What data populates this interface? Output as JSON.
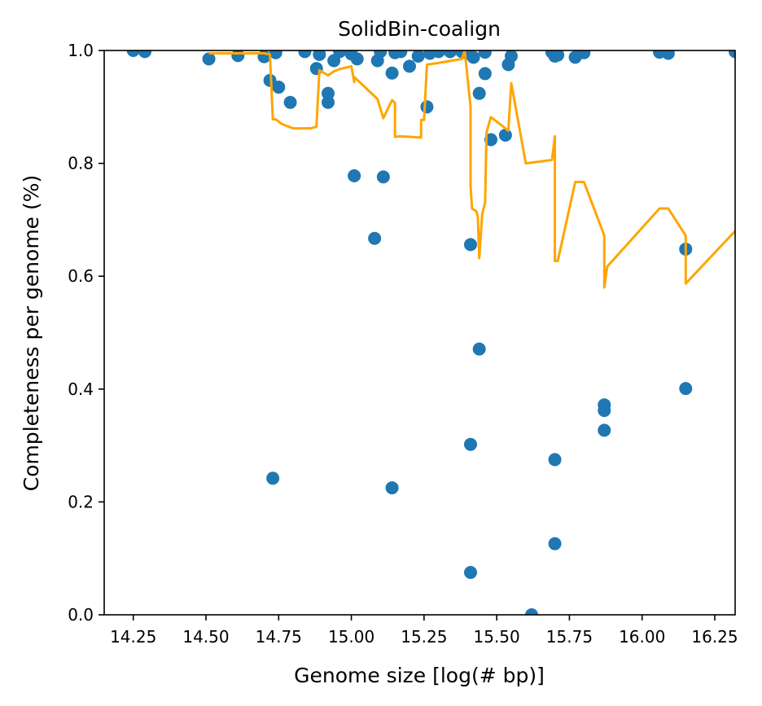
{
  "chart_data": {
    "type": "scatter",
    "title": "SolidBin-coalign",
    "xlabel": "Genome size [log(# bp)]",
    "ylabel": "Completeness per genome (%)",
    "xlim": [
      14.15,
      16.32
    ],
    "ylim": [
      0.0,
      1.0
    ],
    "x_ticks": [
      14.25,
      14.5,
      14.75,
      15.0,
      15.25,
      15.5,
      15.75,
      16.0,
      16.25
    ],
    "x_tick_labels": [
      "14.25",
      "14.50",
      "14.75",
      "15.00",
      "15.25",
      "15.50",
      "15.75",
      "16.00",
      "16.25"
    ],
    "y_ticks": [
      0.0,
      0.2,
      0.4,
      0.6,
      0.8,
      1.0
    ],
    "y_tick_labels": [
      "0.0",
      "0.2",
      "0.4",
      "0.6",
      "0.8",
      "1.0"
    ],
    "grid": false,
    "colors": {
      "points": "#1f77b4",
      "line": "#ffa500",
      "axes": "#000000"
    },
    "series": [
      {
        "type": "scatter",
        "points": [
          [
            14.25,
            1.0
          ],
          [
            14.29,
            0.998
          ],
          [
            14.51,
            0.985
          ],
          [
            14.61,
            0.991
          ],
          [
            14.7,
            0.989
          ],
          [
            14.72,
            0.947
          ],
          [
            14.73,
            0.242
          ],
          [
            14.74,
            0.996
          ],
          [
            14.75,
            0.935
          ],
          [
            14.79,
            0.908
          ],
          [
            14.84,
            0.998
          ],
          [
            14.88,
            0.968
          ],
          [
            14.89,
            0.993
          ],
          [
            14.92,
            0.924
          ],
          [
            14.92,
            0.908
          ],
          [
            14.94,
            0.982
          ],
          [
            14.96,
            0.998
          ],
          [
            15.0,
            0.994
          ],
          [
            15.01,
            0.778
          ],
          [
            15.02,
            0.985
          ],
          [
            15.08,
            0.667
          ],
          [
            15.09,
            0.982
          ],
          [
            15.1,
            0.998
          ],
          [
            15.11,
            0.776
          ],
          [
            15.14,
            0.96
          ],
          [
            15.14,
            0.225
          ],
          [
            15.15,
            0.996
          ],
          [
            15.17,
            0.998
          ],
          [
            15.2,
            0.972
          ],
          [
            15.23,
            0.99
          ],
          [
            15.26,
            0.9
          ],
          [
            15.27,
            0.995
          ],
          [
            15.3,
            0.998
          ],
          [
            15.34,
            0.998
          ],
          [
            15.38,
            0.998
          ],
          [
            15.4,
            0.995
          ],
          [
            15.41,
            0.302
          ],
          [
            15.41,
            0.075
          ],
          [
            15.41,
            0.656
          ],
          [
            15.42,
            0.988
          ],
          [
            15.44,
            0.924
          ],
          [
            15.44,
            0.471
          ],
          [
            15.46,
            0.997
          ],
          [
            15.46,
            0.959
          ],
          [
            15.48,
            0.842
          ],
          [
            15.53,
            0.85
          ],
          [
            15.54,
            0.975
          ],
          [
            15.55,
            0.99
          ],
          [
            15.62,
            0.0
          ],
          [
            15.69,
            0.997
          ],
          [
            15.7,
            0.99
          ],
          [
            15.7,
            0.275
          ],
          [
            15.7,
            0.126
          ],
          [
            15.71,
            0.992
          ],
          [
            15.77,
            0.988
          ],
          [
            15.8,
            0.996
          ],
          [
            15.87,
            0.372
          ],
          [
            15.87,
            0.362
          ],
          [
            15.87,
            0.327
          ],
          [
            16.06,
            0.997
          ],
          [
            16.09,
            0.995
          ],
          [
            16.15,
            0.648
          ],
          [
            16.15,
            0.401
          ],
          [
            16.32,
            0.998
          ]
        ]
      },
      {
        "type": "line",
        "points": [
          [
            14.51,
            0.995
          ],
          [
            14.7,
            0.995
          ],
          [
            14.72,
            0.993
          ],
          [
            14.73,
            0.878
          ],
          [
            14.74,
            0.878
          ],
          [
            14.76,
            0.87
          ],
          [
            14.8,
            0.862
          ],
          [
            14.86,
            0.862
          ],
          [
            14.88,
            0.865
          ],
          [
            14.89,
            0.965
          ],
          [
            14.9,
            0.962
          ],
          [
            14.92,
            0.956
          ],
          [
            14.94,
            0.963
          ],
          [
            14.96,
            0.967
          ],
          [
            15.0,
            0.972
          ],
          [
            15.01,
            0.944
          ],
          [
            15.01,
            0.953
          ],
          [
            15.09,
            0.914
          ],
          [
            15.11,
            0.88
          ],
          [
            15.14,
            0.912
          ],
          [
            15.15,
            0.907
          ],
          [
            15.15,
            0.847
          ],
          [
            15.17,
            0.848
          ],
          [
            15.23,
            0.846
          ],
          [
            15.24,
            0.846
          ],
          [
            15.24,
            0.877
          ],
          [
            15.25,
            0.877
          ],
          [
            15.26,
            0.975
          ],
          [
            15.3,
            0.978
          ],
          [
            15.38,
            0.985
          ],
          [
            15.39,
            1.0
          ],
          [
            15.41,
            0.9
          ],
          [
            15.41,
            0.76
          ],
          [
            15.415,
            0.72
          ],
          [
            15.43,
            0.715
          ],
          [
            15.435,
            0.705
          ],
          [
            15.44,
            0.632
          ],
          [
            15.45,
            0.71
          ],
          [
            15.46,
            0.73
          ],
          [
            15.465,
            0.855
          ],
          [
            15.48,
            0.882
          ],
          [
            15.53,
            0.862
          ],
          [
            15.54,
            0.858
          ],
          [
            15.55,
            0.942
          ],
          [
            15.6,
            0.8
          ],
          [
            15.69,
            0.806
          ],
          [
            15.7,
            0.848
          ],
          [
            15.7,
            0.627
          ],
          [
            15.71,
            0.627
          ],
          [
            15.77,
            0.767
          ],
          [
            15.8,
            0.767
          ],
          [
            15.87,
            0.672
          ],
          [
            15.87,
            0.58
          ],
          [
            15.88,
            0.617
          ],
          [
            16.06,
            0.72
          ],
          [
            16.09,
            0.72
          ],
          [
            16.15,
            0.672
          ],
          [
            16.15,
            0.587
          ],
          [
            16.32,
            0.68
          ]
        ]
      }
    ]
  }
}
